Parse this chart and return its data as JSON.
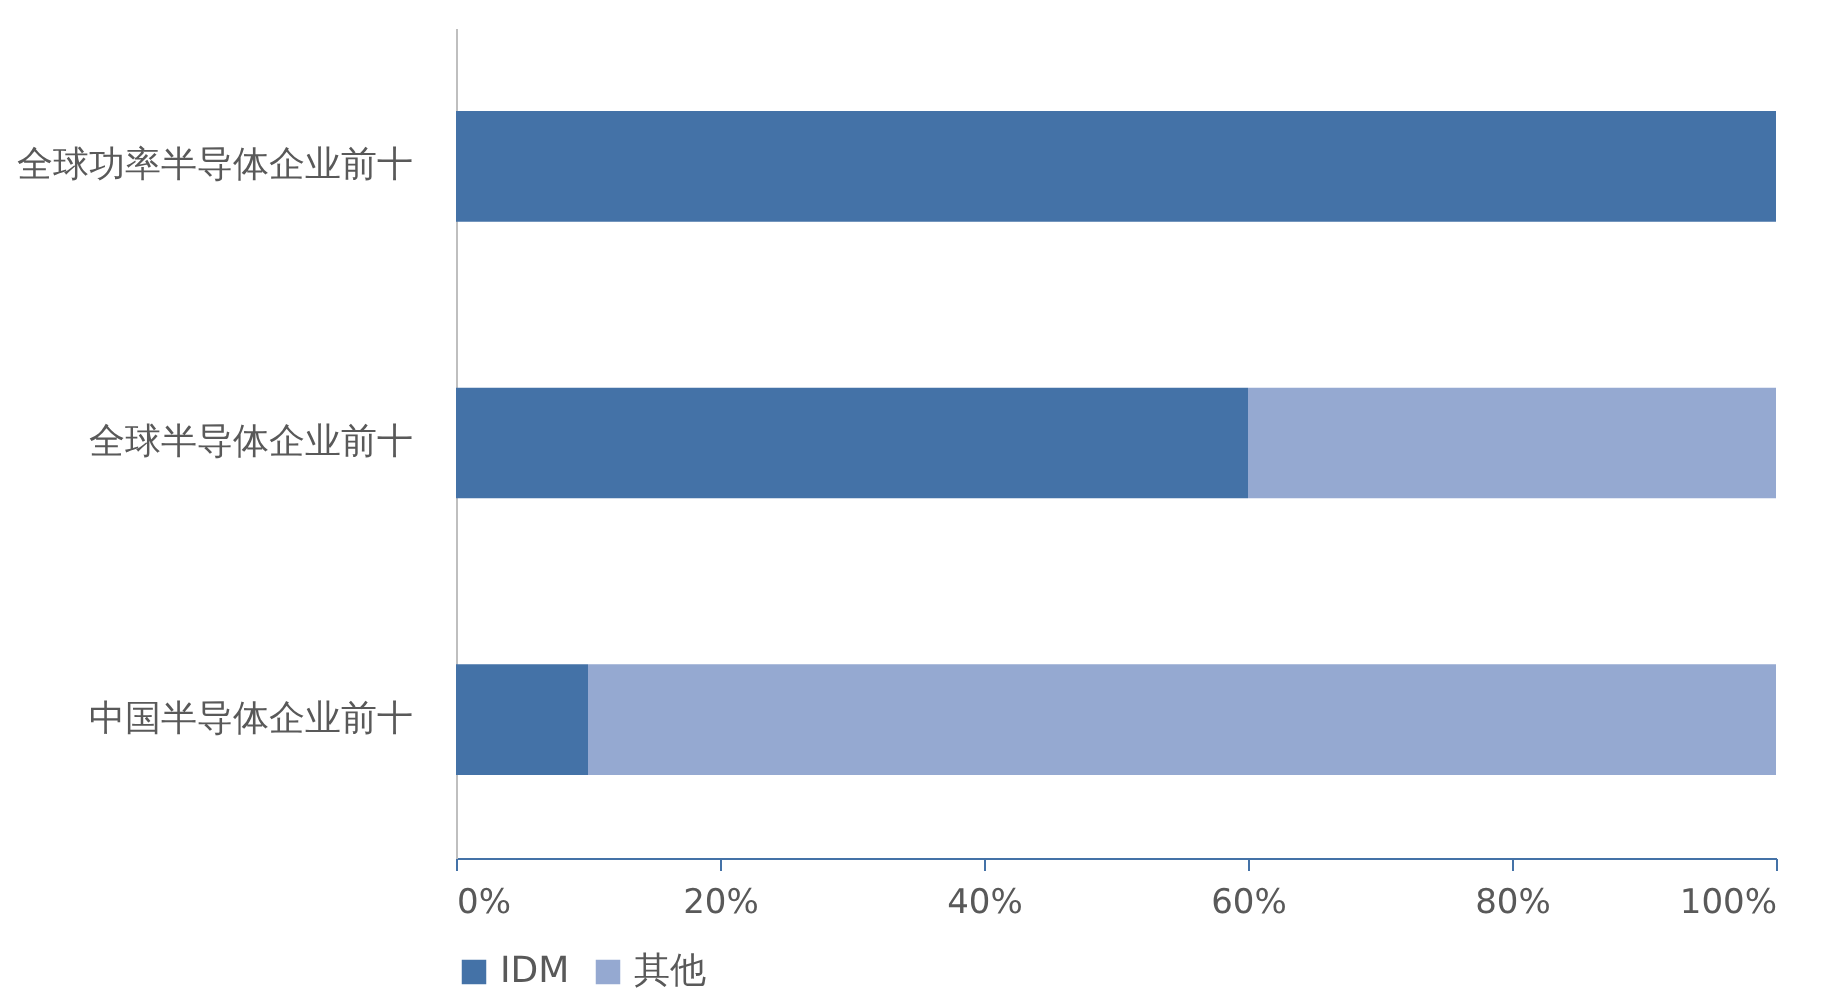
{
  "chart_data": {
    "type": "bar",
    "orientation": "horizontal",
    "stacked": true,
    "categories": [
      "全球功率半导体企业前十",
      "全球半导体企业前十",
      "中国半导体企业前十"
    ],
    "series": [
      {
        "name": "IDM",
        "color": "#4472a7",
        "values": [
          100,
          60,
          10
        ]
      },
      {
        "name": "其他",
        "color": "#95a9d1",
        "values": [
          0,
          40,
          90
        ]
      }
    ],
    "xlim": [
      0,
      100
    ],
    "xticks": [
      {
        "value": 0,
        "label": "0%"
      },
      {
        "value": 20,
        "label": "20%"
      },
      {
        "value": 40,
        "label": "40%"
      },
      {
        "value": 60,
        "label": "60%"
      },
      {
        "value": 80,
        "label": "80%"
      },
      {
        "value": 100,
        "label": "100%"
      }
    ],
    "grid": false,
    "legend": "bottom"
  }
}
